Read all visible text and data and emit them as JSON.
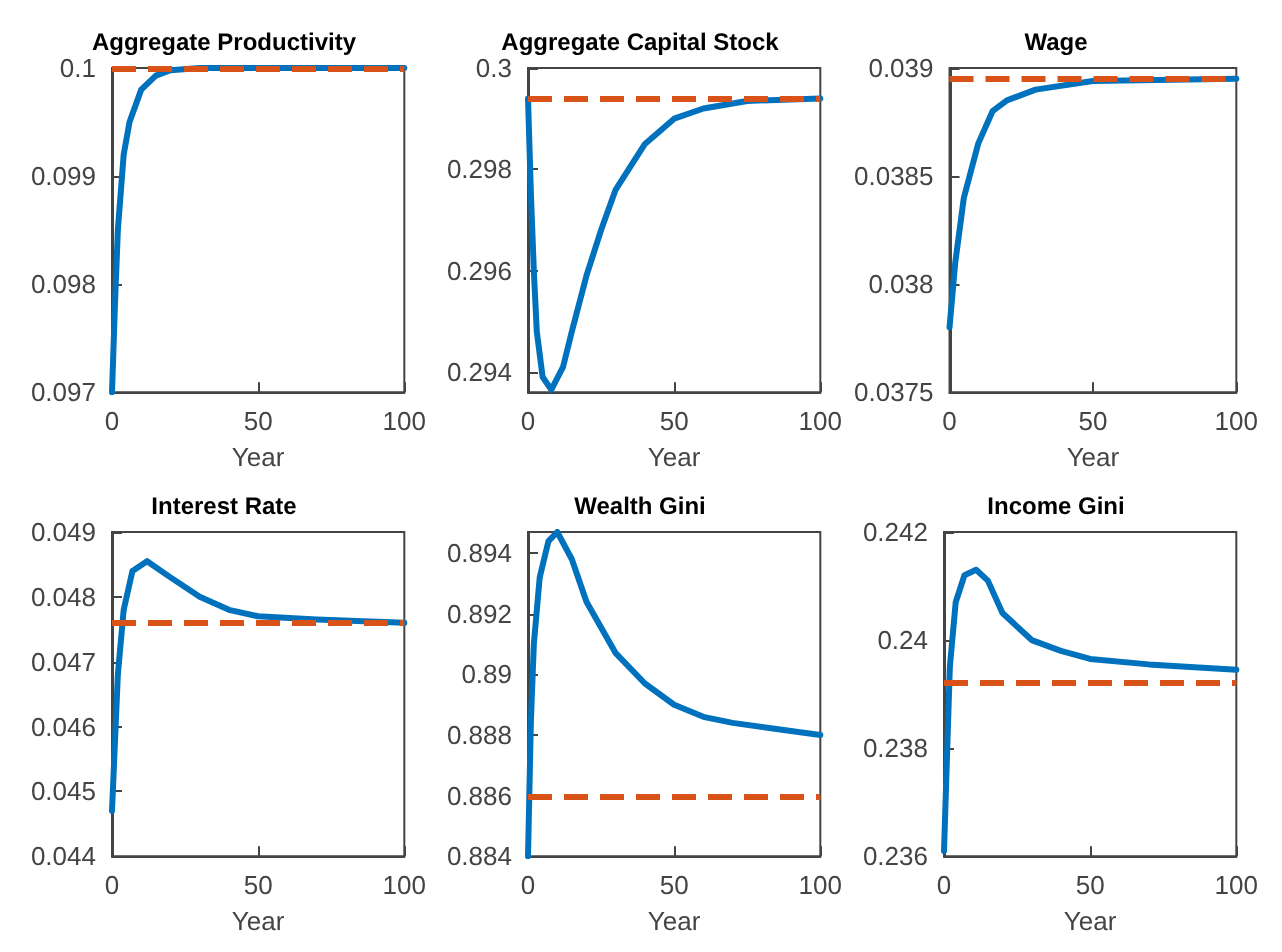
{
  "chart_data": [
    {
      "type": "line",
      "title": "Aggregate Productivity",
      "xlabel": "Year",
      "x": [
        0,
        1,
        2,
        4,
        6,
        10,
        15,
        20,
        30,
        50,
        100
      ],
      "series": [
        {
          "color": "#0072bd",
          "values": [
            0.097,
            0.0978,
            0.0985,
            0.0992,
            0.0995,
            0.0998,
            0.09993,
            0.09998,
            0.1,
            0.1,
            0.1
          ]
        }
      ],
      "xlim": [
        0,
        100
      ],
      "xticks": [
        0,
        50,
        100
      ],
      "ylim": [
        0.097,
        0.1
      ],
      "yticks": [
        0.097,
        0.098,
        0.099,
        0.1
      ],
      "ref_lines": [
        {
          "axis": "y",
          "value": 0.1,
          "color": "#d95319",
          "line_style": "dashed"
        }
      ],
      "grid": false
    },
    {
      "type": "line",
      "title": "Aggregate Capital Stock",
      "xlabel": "Year",
      "x": [
        0,
        1,
        2,
        3,
        5,
        8,
        12,
        15,
        20,
        25,
        30,
        40,
        50,
        60,
        75,
        100
      ],
      "series": [
        {
          "color": "#0072bd",
          "values": [
            0.2994,
            0.2975,
            0.296,
            0.2948,
            0.2939,
            0.29365,
            0.2941,
            0.2948,
            0.2959,
            0.2968,
            0.2976,
            0.2985,
            0.299,
            0.2992,
            0.29935,
            0.2994
          ]
        }
      ],
      "xlim": [
        0,
        100
      ],
      "xticks": [
        0,
        50,
        100
      ],
      "ylim": [
        0.2936,
        0.3
      ],
      "yticks": [
        0.294,
        0.296,
        0.298,
        0.3
      ],
      "ref_lines": [
        {
          "axis": "y",
          "value": 0.29941,
          "color": "#d95319",
          "line_style": "dashed"
        }
      ],
      "grid": false
    },
    {
      "type": "line",
      "title": "Wage",
      "xlabel": "Year",
      "x": [
        0,
        2,
        5,
        10,
        15,
        20,
        30,
        50,
        100
      ],
      "series": [
        {
          "color": "#0072bd",
          "values": [
            0.0378,
            0.0381,
            0.0384,
            0.03865,
            0.0388,
            0.03885,
            0.0389,
            0.03894,
            0.03895
          ]
        }
      ],
      "xlim": [
        0,
        100
      ],
      "xticks": [
        0,
        50,
        100
      ],
      "ylim": [
        0.0375,
        0.039
      ],
      "yticks": [
        0.0375,
        0.038,
        0.0385,
        0.039
      ],
      "ref_lines": [
        {
          "axis": "y",
          "value": 0.03895,
          "color": "#d95319",
          "line_style": "dashed"
        }
      ],
      "grid": false
    },
    {
      "type": "line",
      "title": "Interest Rate",
      "xlabel": "Year",
      "x": [
        0,
        2,
        4,
        7,
        12,
        20,
        30,
        40,
        50,
        70,
        100
      ],
      "series": [
        {
          "color": "#0072bd",
          "values": [
            0.0447,
            0.0468,
            0.0478,
            0.0484,
            0.04855,
            0.0483,
            0.048,
            0.0478,
            0.0477,
            0.04765,
            0.0476
          ]
        }
      ],
      "xlim": [
        0,
        100
      ],
      "xticks": [
        0,
        50,
        100
      ],
      "ylim": [
        0.044,
        0.049
      ],
      "yticks": [
        0.044,
        0.045,
        0.046,
        0.047,
        0.048,
        0.049
      ],
      "ref_lines": [
        {
          "axis": "y",
          "value": 0.0476,
          "color": "#d95319",
          "line_style": "dashed"
        }
      ],
      "grid": false
    },
    {
      "type": "line",
      "title": "Wealth Gini",
      "xlabel": "Year",
      "x": [
        0,
        1,
        2,
        4,
        7,
        10,
        15,
        20,
        30,
        40,
        50,
        60,
        70,
        85,
        100
      ],
      "series": [
        {
          "color": "#0072bd",
          "values": [
            0.884,
            0.8885,
            0.891,
            0.8932,
            0.8944,
            0.8947,
            0.8938,
            0.8924,
            0.8907,
            0.8897,
            0.889,
            0.8886,
            0.8884,
            0.8882,
            0.888
          ]
        }
      ],
      "xlim": [
        0,
        100
      ],
      "xticks": [
        0,
        50,
        100
      ],
      "ylim": [
        0.884,
        0.8947
      ],
      "yticks": [
        0.884,
        0.886,
        0.888,
        0.89,
        0.892,
        0.894
      ],
      "ref_lines": [
        {
          "axis": "y",
          "value": 0.886,
          "color": "#d95319",
          "line_style": "dashed"
        }
      ],
      "grid": false
    },
    {
      "type": "line",
      "title": "Income Gini",
      "xlabel": "Year",
      "x": [
        0,
        2,
        4,
        7,
        11,
        15,
        20,
        30,
        40,
        50,
        70,
        100
      ],
      "series": [
        {
          "color": "#0072bd",
          "values": [
            0.2361,
            0.2395,
            0.2407,
            0.2412,
            0.2413,
            0.2411,
            0.2405,
            0.24,
            0.2398,
            0.23965,
            0.23955,
            0.23945
          ]
        }
      ],
      "xlim": [
        0,
        100
      ],
      "xticks": [
        0,
        50,
        100
      ],
      "ylim": [
        0.236,
        0.242
      ],
      "yticks": [
        0.236,
        0.238,
        0.24,
        0.242
      ],
      "ref_lines": [
        {
          "axis": "y",
          "value": 0.2392,
          "color": "#d95319",
          "line_style": "dashed"
        }
      ],
      "grid": false
    }
  ]
}
